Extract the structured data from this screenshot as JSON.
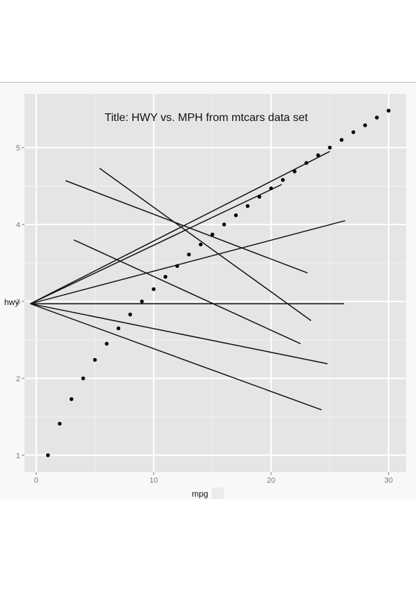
{
  "chart_data": {
    "type": "scatter",
    "title": "Title: HWY vs. MPH from mtcars data set",
    "xlabel": "mpg",
    "ylabel": "hwy",
    "xlim": [
      -1,
      31.5
    ],
    "ylim": [
      0.78,
      5.7
    ],
    "x_ticks": [
      0,
      10,
      20,
      30
    ],
    "y_ticks": [
      1,
      2,
      3,
      4,
      5
    ],
    "grid": true,
    "points": [
      [
        1,
        1.0
      ],
      [
        2,
        1.41
      ],
      [
        3,
        1.73
      ],
      [
        4,
        2.0
      ],
      [
        5,
        2.24
      ],
      [
        6,
        2.45
      ],
      [
        7,
        2.65
      ],
      [
        8,
        2.83
      ],
      [
        9,
        3.0
      ],
      [
        10,
        3.16
      ],
      [
        11,
        3.32
      ],
      [
        12,
        3.46
      ],
      [
        13,
        3.61
      ],
      [
        14,
        3.74
      ],
      [
        15,
        3.87
      ],
      [
        16,
        4.0
      ],
      [
        17,
        4.12
      ],
      [
        18,
        4.24
      ],
      [
        19,
        4.36
      ],
      [
        20,
        4.47
      ],
      [
        21,
        4.58
      ],
      [
        22,
        4.69
      ],
      [
        23,
        4.8
      ],
      [
        24,
        4.9
      ],
      [
        25,
        5.0
      ],
      [
        26,
        5.1
      ],
      [
        27,
        5.2
      ],
      [
        28,
        5.29
      ],
      [
        29,
        5.39
      ],
      [
        30,
        5.48
      ]
    ],
    "lines": [
      {
        "x1": -0.5,
        "y1": 2.97,
        "x2": 25.0,
        "y2": 4.95
      },
      {
        "x1": -0.5,
        "y1": 2.97,
        "x2": 20.9,
        "y2": 4.52
      },
      {
        "x1": -0.5,
        "y1": 2.97,
        "x2": 26.3,
        "y2": 4.05
      },
      {
        "x1": -0.5,
        "y1": 2.97,
        "x2": 26.2,
        "y2": 2.97
      },
      {
        "x1": -0.5,
        "y1": 2.97,
        "x2": 24.8,
        "y2": 2.19
      },
      {
        "x1": -0.5,
        "y1": 2.97,
        "x2": 24.3,
        "y2": 1.59
      },
      {
        "x1": 2.5,
        "y1": 4.57,
        "x2": 23.1,
        "y2": 3.37
      },
      {
        "x1": 5.4,
        "y1": 4.73,
        "x2": 23.4,
        "y2": 2.75
      },
      {
        "x1": 3.2,
        "y1": 3.8,
        "x2": 22.5,
        "y2": 2.45
      }
    ]
  }
}
